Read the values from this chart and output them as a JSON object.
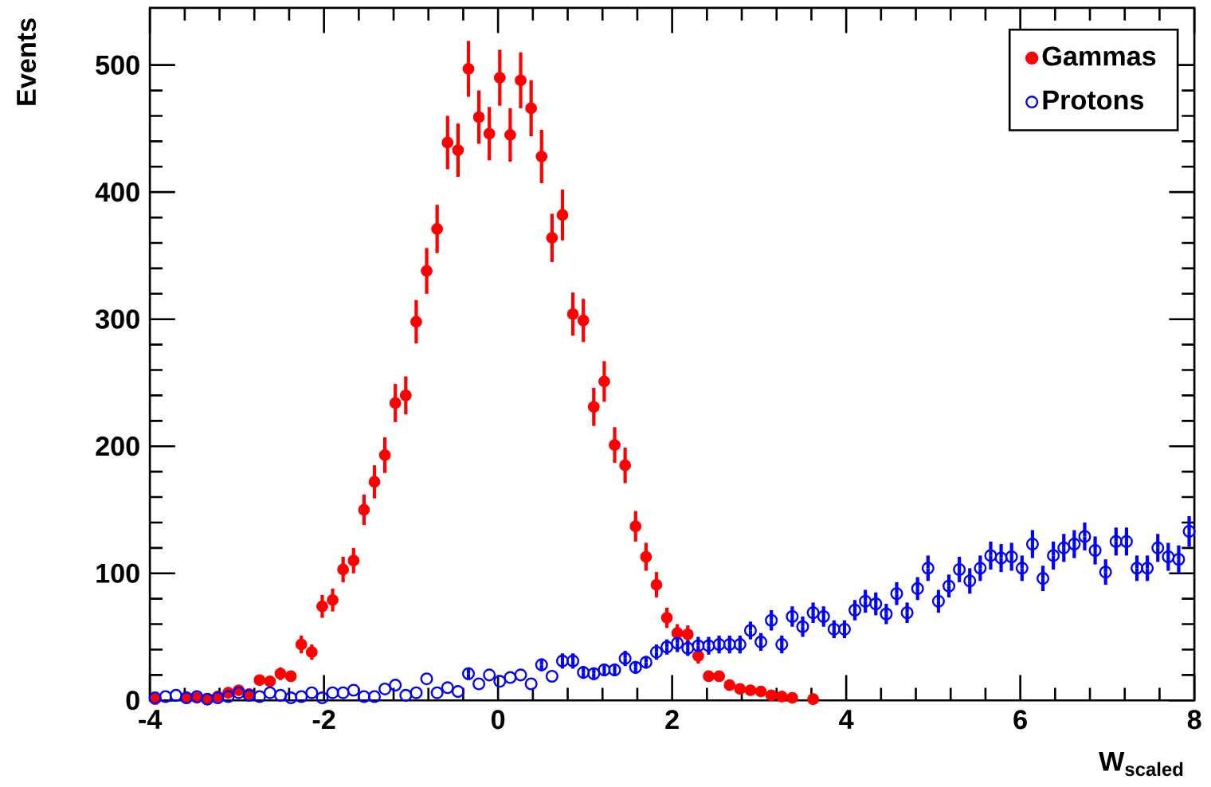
{
  "chart_data": {
    "type": "scatter",
    "xlabel": "W$_{scaled}$",
    "ylabel": "Events",
    "xlim": [
      -4,
      8
    ],
    "ylim": [
      0,
      545
    ],
    "xticks": [
      -4,
      -2,
      0,
      2,
      4,
      6,
      8
    ],
    "yticks": [
      0,
      100,
      200,
      300,
      400,
      500
    ],
    "legend": "top right",
    "x": [
      -3.94,
      -3.82,
      -3.7,
      -3.58,
      -3.46,
      -3.34,
      -3.22,
      -3.1,
      -2.98,
      -2.86,
      -2.74,
      -2.62,
      -2.5,
      -2.38,
      -2.26,
      -2.14,
      -2.02,
      -1.9,
      -1.78,
      -1.66,
      -1.54,
      -1.42,
      -1.3,
      -1.18,
      -1.06,
      -0.94,
      -0.82,
      -0.7,
      -0.58,
      -0.46,
      -0.34,
      -0.22,
      -0.1,
      0.02,
      0.14,
      0.26,
      0.38,
      0.5,
      0.62,
      0.74,
      0.86,
      0.98,
      1.1,
      1.22,
      1.34,
      1.46,
      1.58,
      1.7,
      1.82,
      1.94,
      2.06,
      2.18,
      2.3,
      2.42,
      2.54,
      2.66,
      2.78,
      2.9,
      3.02,
      3.14,
      3.26,
      3.38,
      3.5,
      3.62,
      3.74,
      3.86,
      3.98,
      4.1,
      4.22,
      4.34,
      4.46,
      4.58,
      4.7,
      4.82,
      4.94,
      5.06,
      5.18,
      5.3,
      5.42,
      5.54,
      5.66,
      5.78,
      5.9,
      6.02,
      6.14,
      6.26,
      6.38,
      6.5,
      6.62,
      6.74,
      6.86,
      6.98,
      7.1,
      7.22,
      7.34,
      7.46,
      7.58,
      7.7,
      7.82,
      7.94
    ],
    "series": [
      {
        "name": "Gammas",
        "color": "#ff0000",
        "marker": "circle",
        "values": [
          1,
          null,
          null,
          2,
          2,
          1,
          3,
          6,
          8,
          5,
          16,
          15,
          21,
          19,
          44,
          38,
          74,
          79,
          103,
          110,
          150,
          172,
          193,
          234,
          240,
          298,
          338,
          371,
          439,
          433,
          497,
          459,
          446,
          490,
          445,
          488,
          466,
          428,
          364,
          382,
          304,
          299,
          231,
          251,
          201,
          185,
          137,
          113,
          91,
          65,
          53,
          52,
          35,
          19,
          19,
          12,
          9,
          8,
          7,
          4,
          3,
          2,
          null,
          1,
          null,
          null,
          null,
          null,
          null,
          null,
          null,
          null,
          null,
          null,
          null,
          null,
          null,
          null,
          null,
          null,
          null,
          null,
          null,
          null,
          null,
          null,
          null,
          null,
          null,
          null,
          null,
          null,
          null,
          null,
          null,
          null,
          null,
          null,
          null,
          null
        ],
        "errors": [
          null,
          null,
          null,
          null,
          null,
          null,
          null,
          null,
          null,
          null,
          null,
          null,
          5,
          null,
          7,
          6,
          9,
          9,
          10,
          10,
          12,
          13,
          14,
          15,
          15,
          17,
          18,
          19,
          21,
          21,
          22,
          21,
          21,
          22,
          21,
          22,
          22,
          21,
          19,
          20,
          17,
          17,
          15,
          16,
          14,
          14,
          12,
          11,
          10,
          8,
          7,
          7,
          6,
          null,
          null,
          null,
          null,
          null,
          null,
          null,
          null,
          null,
          null,
          null,
          null,
          null,
          null,
          null,
          null,
          null,
          null,
          null,
          null,
          null,
          null,
          null,
          null,
          null,
          null,
          null,
          null,
          null,
          null,
          null,
          null,
          null,
          null,
          null,
          null,
          null,
          null,
          null,
          null,
          null,
          null,
          null,
          null,
          null,
          null,
          null
        ]
      },
      {
        "name": "Protons",
        "color": "#0000ff",
        "marker": "open circle",
        "values": [
          2,
          3,
          4,
          2,
          3,
          1,
          2,
          3,
          6,
          4,
          3,
          6,
          4,
          2,
          3,
          6,
          2,
          6,
          6,
          8,
          3,
          3,
          9,
          12,
          4,
          6,
          17,
          6,
          10,
          7,
          21,
          13,
          20,
          15,
          18,
          20,
          13,
          28,
          19,
          31,
          31,
          22,
          21,
          24,
          24,
          33,
          26,
          30,
          38,
          42,
          45,
          41,
          43,
          43,
          44,
          44,
          44,
          55,
          46,
          63,
          44,
          66,
          58,
          69,
          66,
          56,
          56,
          71,
          78,
          76,
          68,
          84,
          69,
          88,
          104,
          78,
          90,
          103,
          94,
          104,
          114,
          112,
          113,
          104,
          123,
          96,
          114,
          120,
          123,
          129,
          118,
          101,
          125,
          125,
          104,
          104,
          120,
          113,
          111,
          133
        ],
        "errors": [
          null,
          null,
          null,
          null,
          null,
          null,
          null,
          null,
          null,
          null,
          null,
          null,
          null,
          null,
          null,
          null,
          null,
          null,
          null,
          null,
          null,
          null,
          null,
          null,
          null,
          null,
          null,
          null,
          null,
          null,
          5,
          null,
          null,
          null,
          null,
          null,
          null,
          5,
          null,
          6,
          6,
          5,
          5,
          5,
          5,
          6,
          5,
          5,
          6,
          6,
          7,
          6,
          7,
          7,
          7,
          7,
          7,
          7,
          7,
          8,
          7,
          8,
          8,
          8,
          8,
          7,
          7,
          8,
          9,
          9,
          8,
          9,
          8,
          9,
          10,
          9,
          9,
          10,
          10,
          10,
          11,
          11,
          11,
          10,
          11,
          10,
          11,
          11,
          11,
          11,
          11,
          10,
          11,
          11,
          10,
          10,
          11,
          11,
          11,
          12
        ]
      }
    ]
  }
}
